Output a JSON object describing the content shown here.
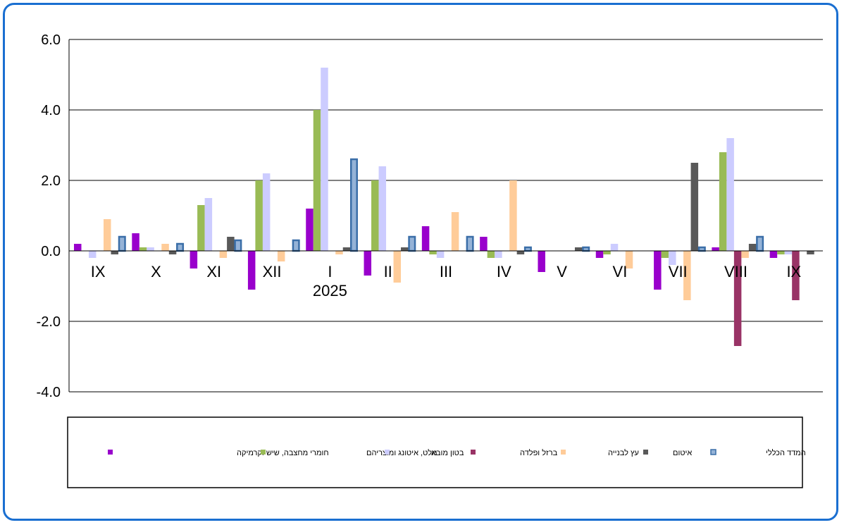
{
  "chart_data": {
    "type": "bar",
    "categories": [
      "IX",
      "X",
      "XI",
      "XII",
      "I",
      "II",
      "III",
      "IV",
      "V",
      "VI",
      "VII",
      "VIII",
      "IX"
    ],
    "year_label": "2025",
    "ylim": [
      -4,
      6
    ],
    "yticks": [
      "6.0",
      "4.0",
      "2.0",
      "0.0",
      "-2.0",
      "-4.0"
    ],
    "grid": true,
    "legend_position": "bottom",
    "series": [
      {
        "name": "חומרי מחצבה, שיש וקרמיקה",
        "color": "#9900cc",
        "outline": false,
        "values": [
          0.2,
          0.5,
          -0.5,
          -1.1,
          1.2,
          -0.7,
          0.7,
          0.4,
          -0.6,
          -0.2,
          -1.1,
          0.1,
          -0.2
        ]
      },
      {
        "name": "מלט, איטונג ומוצריהם",
        "color": "#99bb55",
        "outline": false,
        "values": [
          0.0,
          0.1,
          1.3,
          2.0,
          4.0,
          2.0,
          -0.1,
          -0.2,
          0.0,
          -0.1,
          -0.2,
          2.8,
          -0.1
        ]
      },
      {
        "name": "בטון מובא",
        "color": "#ccccff",
        "outline": false,
        "values": [
          -0.2,
          0.1,
          1.5,
          2.2,
          5.2,
          2.4,
          -0.2,
          -0.2,
          0.0,
          0.2,
          -0.4,
          3.2,
          -0.1
        ]
      },
      {
        "name": "ברזל ופלדה",
        "color": "#993366",
        "outline": false,
        "values": [
          0.0,
          0.0,
          0.0,
          0.0,
          0.0,
          0.0,
          0.0,
          0.0,
          0.0,
          0.0,
          0.0,
          -2.7,
          -1.4
        ]
      },
      {
        "name": "עץ לבנייה",
        "color": "#ffcc99",
        "outline": false,
        "values": [
          0.9,
          0.2,
          -0.2,
          -0.3,
          -0.1,
          -0.9,
          1.1,
          2.0,
          0.0,
          -0.5,
          -1.4,
          -0.2,
          0.0
        ]
      },
      {
        "name": "איטום",
        "color": "#595959",
        "outline": false,
        "values": [
          -0.1,
          -0.1,
          0.4,
          0.0,
          0.1,
          0.1,
          0.0,
          -0.1,
          0.1,
          0.0,
          2.5,
          0.2,
          -0.1
        ]
      },
      {
        "name": "המדד הכללי",
        "color": "#95b3d7",
        "outline": true,
        "stroke": "#3a6ea8",
        "values": [
          0.4,
          0.2,
          0.3,
          0.3,
          2.6,
          0.4,
          0.4,
          0.1,
          0.1,
          0.0,
          0.1,
          0.4,
          0.0
        ]
      }
    ]
  }
}
